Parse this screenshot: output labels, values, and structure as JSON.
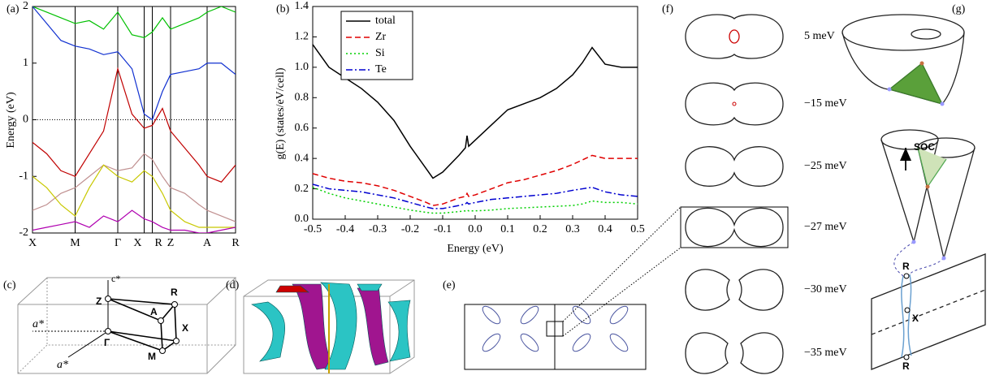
{
  "chart_data": [
    {
      "type": "line",
      "panel": "(a)",
      "ylabel": "Energy (eV)",
      "x": [
        0,
        0.07,
        0.14,
        0.21,
        0.28,
        0.35,
        0.42,
        0.49,
        0.55,
        0.59,
        0.64,
        0.68,
        0.75,
        0.82,
        0.86,
        0.93,
        1.0
      ],
      "xlim": [
        0,
        1
      ],
      "xticks": [
        {
          "value": 0,
          "label": "X"
        },
        {
          "value": 0.21,
          "label": "M"
        },
        {
          "value": 0.42,
          "label": "Γ"
        },
        {
          "value": 0.55,
          "label": "X"
        },
        {
          "value": 0.59,
          "label": "R"
        },
        {
          "value": 0.68,
          "label": "Z"
        },
        {
          "value": 0.86,
          "label": "A"
        },
        {
          "value": 1.0,
          "label": "R"
        }
      ],
      "xgrid": true,
      "ylim": [
        -2,
        2
      ],
      "yticks": [
        -2,
        -1,
        0,
        1,
        2
      ],
      "series": [
        {
          "color": "#00c000",
          "values": [
            2.0,
            1.9,
            1.8,
            1.7,
            1.75,
            1.6,
            1.9,
            1.5,
            1.45,
            1.55,
            1.8,
            1.6,
            1.7,
            1.8,
            1.9,
            2.0,
            1.9
          ]
        },
        {
          "color": "#1030d0",
          "values": [
            2.0,
            1.7,
            1.4,
            1.3,
            1.25,
            1.15,
            1.2,
            0.9,
            0.1,
            0.0,
            0.5,
            0.8,
            0.85,
            0.9,
            1.0,
            1.0,
            0.8
          ]
        },
        {
          "color": "#c00000",
          "values": [
            -0.4,
            -0.6,
            -0.9,
            -1.0,
            -0.6,
            -0.2,
            0.9,
            0.1,
            -0.15,
            -0.1,
            0.2,
            -0.2,
            -0.5,
            -0.8,
            -1.0,
            -1.1,
            -0.8
          ]
        },
        {
          "color": "#c09090",
          "values": [
            -1.6,
            -1.5,
            -1.3,
            -1.2,
            -1.0,
            -0.8,
            -0.9,
            -0.85,
            -0.6,
            -0.7,
            -1.0,
            -1.2,
            -1.3,
            -1.5,
            -1.6,
            -1.7,
            -1.8
          ]
        },
        {
          "color": "#c8c800",
          "values": [
            -1.0,
            -1.2,
            -1.5,
            -1.7,
            -1.2,
            -0.8,
            -1.0,
            -1.1,
            -0.9,
            -1.0,
            -1.3,
            -1.6,
            -1.8,
            -1.9,
            -1.9,
            -1.9,
            -1.9
          ]
        },
        {
          "color": "#b000b0",
          "values": [
            -1.95,
            -1.9,
            -1.85,
            -1.8,
            -1.9,
            -1.7,
            -1.8,
            -1.6,
            -1.75,
            -1.8,
            -1.9,
            -1.95,
            -1.95,
            -2.0,
            -2.0,
            -1.95,
            -1.9
          ]
        }
      ]
    },
    {
      "type": "line",
      "panel": "(b)",
      "xlabel": "Energy (eV)",
      "ylabel": "g(E) (states/eV/cell)",
      "x": [
        -0.5,
        -0.45,
        -0.4,
        -0.35,
        -0.3,
        -0.25,
        -0.2,
        -0.15,
        -0.13,
        -0.1,
        -0.05,
        -0.03,
        -0.025,
        -0.02,
        0,
        0.05,
        0.1,
        0.15,
        0.2,
        0.25,
        0.3,
        0.33,
        0.36,
        0.4,
        0.45,
        0.5
      ],
      "xlim": [
        -0.5,
        0.5
      ],
      "xticks": [
        -0.5,
        -0.4,
        -0.3,
        -0.2,
        -0.1,
        {
          "value": 0,
          "label": "0.0"
        },
        0.1,
        0.2,
        0.3,
        0.4,
        0.5
      ],
      "ylim": [
        0,
        1.4
      ],
      "yticks": [
        {
          "value": 0,
          "label": "0.0"
        },
        0.2,
        0.4,
        0.6,
        0.8,
        {
          "value": 1,
          "label": "1.0"
        },
        1.2,
        1.4
      ],
      "legend": "upper left",
      "series": [
        {
          "name": "total",
          "color": "#000000",
          "dash": "solid",
          "values": [
            1.15,
            1.0,
            0.93,
            0.86,
            0.77,
            0.65,
            0.48,
            0.33,
            0.27,
            0.31,
            0.42,
            0.47,
            0.55,
            0.48,
            0.52,
            0.62,
            0.72,
            0.76,
            0.8,
            0.86,
            0.95,
            1.03,
            1.13,
            1.02,
            1.0,
            1.0
          ]
        },
        {
          "name": "Zr",
          "color": "#e00000",
          "dash": "dashed",
          "values": [
            0.3,
            0.27,
            0.25,
            0.24,
            0.22,
            0.19,
            0.15,
            0.11,
            0.09,
            0.1,
            0.14,
            0.15,
            0.17,
            0.15,
            0.16,
            0.2,
            0.24,
            0.26,
            0.29,
            0.32,
            0.36,
            0.39,
            0.42,
            0.4,
            0.4,
            0.4
          ]
        },
        {
          "name": "Si",
          "color": "#00d000",
          "dash": "dotted",
          "values": [
            0.21,
            0.17,
            0.14,
            0.12,
            0.1,
            0.08,
            0.06,
            0.045,
            0.04,
            0.04,
            0.05,
            0.055,
            0.06,
            0.055,
            0.055,
            0.06,
            0.07,
            0.075,
            0.08,
            0.085,
            0.09,
            0.1,
            0.12,
            0.11,
            0.11,
            0.1
          ]
        },
        {
          "name": "Te",
          "color": "#0000d0",
          "dash": "dashdot",
          "values": [
            0.23,
            0.2,
            0.19,
            0.18,
            0.16,
            0.14,
            0.11,
            0.08,
            0.07,
            0.07,
            0.09,
            0.1,
            0.11,
            0.1,
            0.11,
            0.13,
            0.14,
            0.15,
            0.16,
            0.17,
            0.19,
            0.2,
            0.21,
            0.18,
            0.16,
            0.15
          ]
        }
      ]
    }
  ],
  "diagrams": {
    "c": {
      "panel": "(c)",
      "axes": [
        "c*",
        "a*",
        "a*"
      ],
      "points": [
        "Z",
        "R",
        "A",
        "X",
        "Γ",
        "M"
      ]
    },
    "d": {
      "panel": "(d)"
    },
    "e": {
      "panel": "(e)"
    },
    "f": {
      "panel": "(f)",
      "energies": [
        "5 meV",
        "−15 meV",
        "−25 meV",
        "−27 meV",
        "−30 meV",
        "−35 meV"
      ]
    },
    "g": {
      "panel": "(g)",
      "arrow": "SOC",
      "points": [
        "R",
        "X",
        "R"
      ]
    }
  }
}
